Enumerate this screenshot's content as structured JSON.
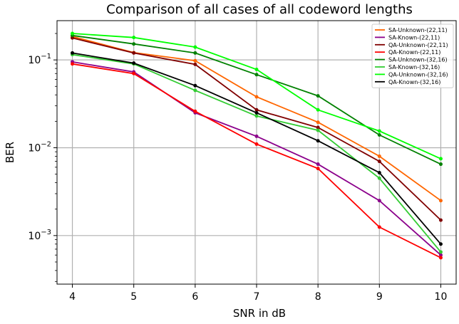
{
  "chart_data": {
    "type": "line",
    "title": "Comparison of all cases of all codeword lengths",
    "xlabel": "SNR in dB",
    "ylabel": "BER",
    "yscale": "log",
    "xlim": [
      3.75,
      10.25
    ],
    "ylim": [
      0.00028,
      0.28
    ],
    "grid": true,
    "legend_position": "top-right",
    "x": [
      4,
      5,
      6,
      7,
      8,
      9,
      10
    ],
    "x_tick_labels": [
      "4",
      "5",
      "6",
      "7",
      "8",
      "9",
      "10"
    ],
    "y_ticks": [
      {
        "base": "10",
        "exp": "−1",
        "value": 0.1
      },
      {
        "base": "10",
        "exp": "−2",
        "value": 0.01
      },
      {
        "base": "10",
        "exp": "−3",
        "value": 0.001
      }
    ],
    "series": [
      {
        "name": "SA-Unknown-(22,11)",
        "color": "#ff6600",
        "values": [
          0.185,
          0.121,
          0.098,
          0.038,
          0.0195,
          0.008,
          0.0025
        ]
      },
      {
        "name": "SA-Known-(22,11)",
        "color": "#8b008b",
        "values": [
          0.095,
          0.073,
          0.025,
          0.0135,
          0.0065,
          0.0025,
          0.0006
        ]
      },
      {
        "name": "QA-Unknown-(22,11)",
        "color": "#800000",
        "values": [
          0.178,
          0.12,
          0.089,
          0.027,
          0.017,
          0.007,
          0.0015
        ]
      },
      {
        "name": "QA-Known-(22,11)",
        "color": "#ff0000",
        "values": [
          0.09,
          0.07,
          0.026,
          0.011,
          0.0058,
          0.00125,
          0.00056
        ]
      },
      {
        "name": "SA-Unknown-(32,16)",
        "color": "#008000",
        "values": [
          0.19,
          0.152,
          0.12,
          0.068,
          0.039,
          0.014,
          0.0065
        ]
      },
      {
        "name": "SA-Known-(32,16)",
        "color": "#33cc33",
        "values": [
          0.115,
          0.09,
          0.045,
          0.023,
          0.0158,
          0.0045,
          0.00065
        ]
      },
      {
        "name": "QA-Unknown-(32,16)",
        "color": "#00ff00",
        "values": [
          0.2,
          0.18,
          0.14,
          0.078,
          0.027,
          0.0155,
          0.0075
        ]
      },
      {
        "name": "QA-Known-(32,16)",
        "color": "#000000",
        "values": [
          0.12,
          0.092,
          0.051,
          0.025,
          0.012,
          0.0052,
          0.0008
        ]
      }
    ]
  }
}
